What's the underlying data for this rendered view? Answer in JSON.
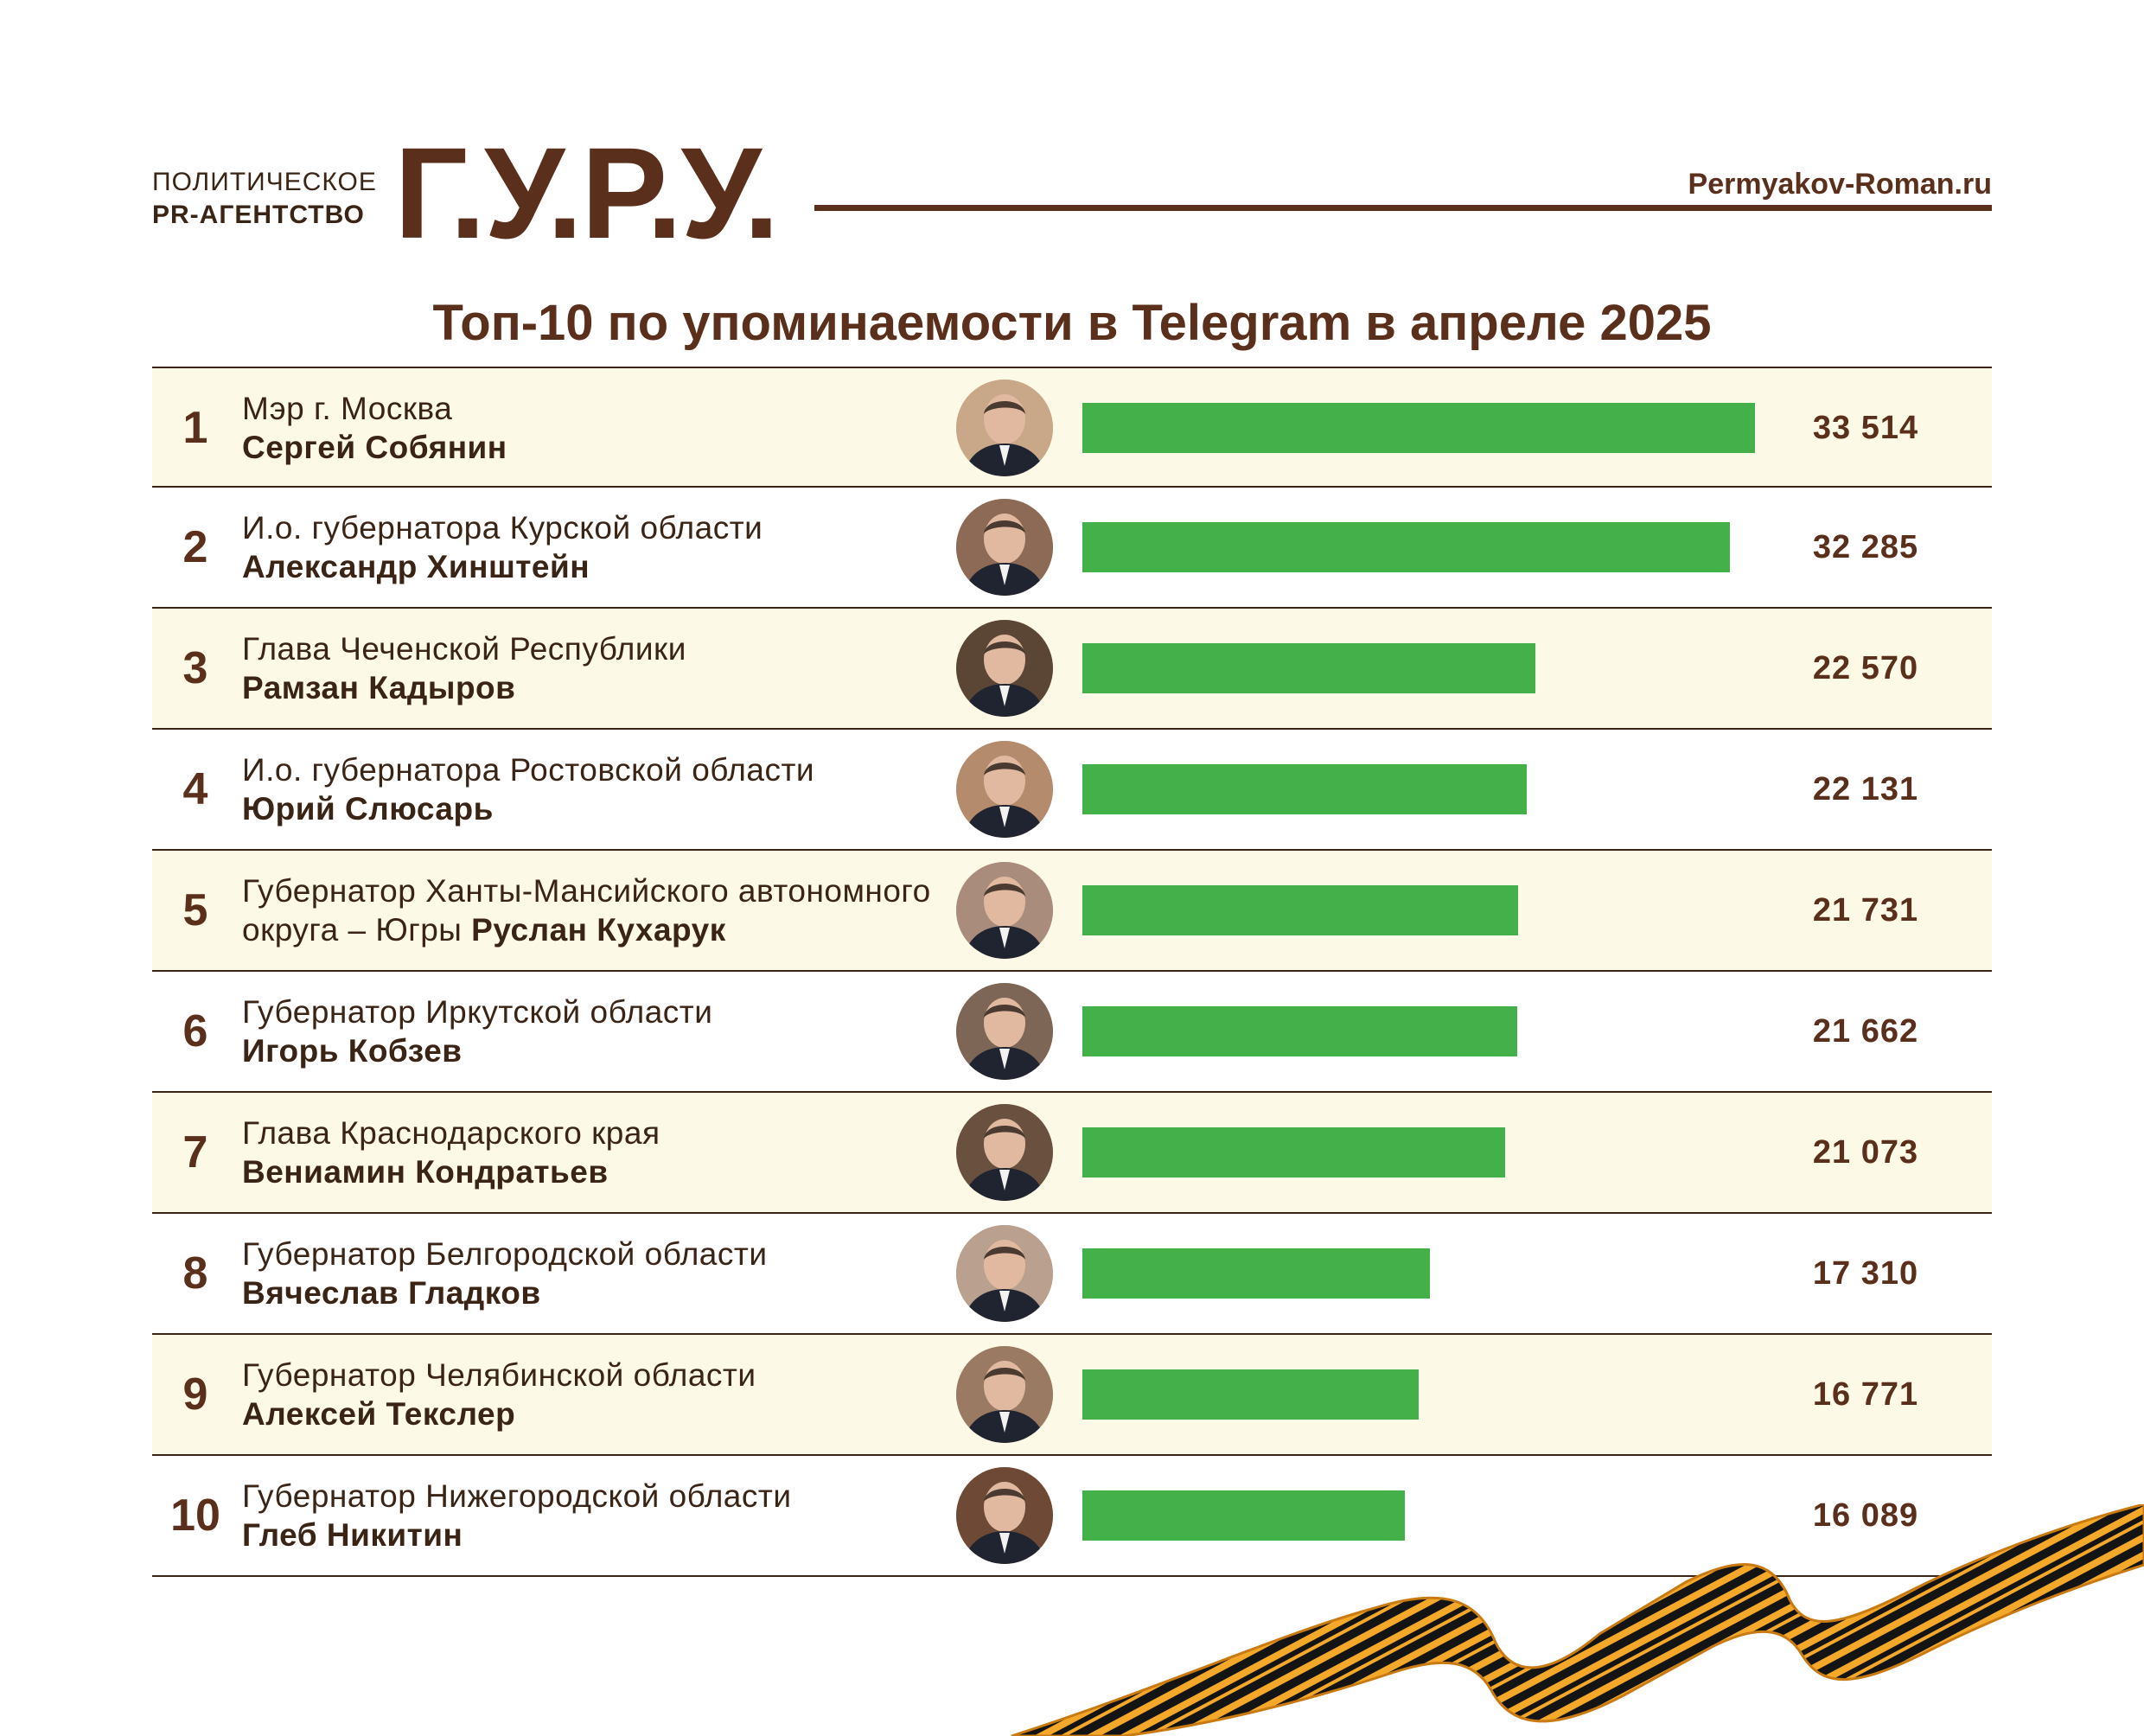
{
  "header": {
    "agency_line1": "ПОЛИТИЧЕСКОЕ",
    "agency_line2": "PR-АГЕНТСТВО",
    "brand": "Г.У.Р.У.",
    "site": "Permyakov-Roman.ru"
  },
  "colors": {
    "brand_brown": "#5a2f1b",
    "bar_green": "#43b04a",
    "row_tint": "#fcf9e6"
  },
  "chart_data": {
    "type": "bar",
    "orientation": "horizontal",
    "title": "Топ-10 по упоминаемости в Telegram в апреле 2025",
    "xlim": [
      0,
      33514
    ],
    "rows": [
      {
        "rank": "1",
        "role": "Мэр г. Москва",
        "name": "Сергей Собянин",
        "value": 33514,
        "label": "33 514"
      },
      {
        "rank": "2",
        "role": "И.о. губернатора Курской области",
        "name": "Александр Хинштейн",
        "value": 32285,
        "label": "32 285"
      },
      {
        "rank": "3",
        "role": "Глава Чеченской Республики",
        "name": "Рамзан Кадыров",
        "value": 22570,
        "label": "22 570"
      },
      {
        "rank": "4",
        "role": "И.о. губернатора Ростовской области",
        "name": "Юрий Слюсарь",
        "value": 22131,
        "label": "22 131"
      },
      {
        "rank": "5",
        "role": "Губернатор Ханты-Мансийского автономного округа – Югры",
        "name": "Руслан Кухарук",
        "value": 21731,
        "label": "21 731"
      },
      {
        "rank": "6",
        "role": "Губернатор Иркутской области",
        "name": "Игорь Кобзев",
        "value": 21662,
        "label": "21 662"
      },
      {
        "rank": "7",
        "role": "Глава Краснодарского края",
        "name": "Вениамин Кондратьев",
        "value": 21073,
        "label": "21 073"
      },
      {
        "rank": "8",
        "role": "Губернатор Белгородской области",
        "name": "Вячеслав Гладков",
        "value": 17310,
        "label": "17 310"
      },
      {
        "rank": "9",
        "role": "Губернатор Челябинской области",
        "name": "Алексей Текслер",
        "value": 16771,
        "label": "16 771"
      },
      {
        "rank": "10",
        "role": "Губернатор Нижегородской области",
        "name": "Глеб Никитин",
        "value": 16089,
        "label": "16 089"
      }
    ]
  }
}
